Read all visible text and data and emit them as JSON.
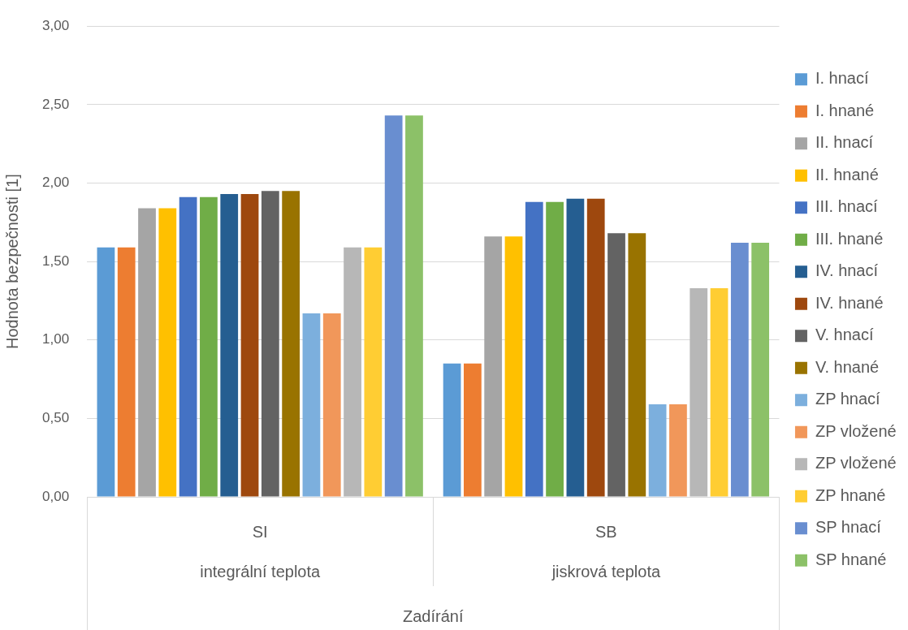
{
  "chart_data": {
    "type": "bar",
    "ylabel": "Hodnota bezpečnosti [1]",
    "xlabel": "Zadírání",
    "categories": [
      "SI",
      "SB"
    ],
    "annotations": [
      "integrální teplota",
      "jiskrová teplota"
    ],
    "ylim": [
      0,
      3
    ],
    "yticks": [
      {
        "value": 0,
        "label": "0,00"
      },
      {
        "value": 0.5,
        "label": "0,50"
      },
      {
        "value": 1,
        "label": "1,00"
      },
      {
        "value": 1.5,
        "label": "1,50"
      },
      {
        "value": 2,
        "label": "2,00"
      },
      {
        "value": 2.5,
        "label": "2,50"
      },
      {
        "value": 3,
        "label": "3,00"
      }
    ],
    "grid": "y",
    "legend": "right",
    "series": [
      {
        "name": "I. hnací",
        "color": "#5b9bd5",
        "values": [
          1.59,
          0.85
        ]
      },
      {
        "name": "I. hnané",
        "color": "#ed7d31",
        "values": [
          1.59,
          0.85
        ]
      },
      {
        "name": "II. hnací",
        "color": "#a5a5a5",
        "values": [
          1.84,
          1.66
        ]
      },
      {
        "name": "II. hnané",
        "color": "#ffc000",
        "values": [
          1.84,
          1.66
        ]
      },
      {
        "name": "III. hnací",
        "color": "#4472c4",
        "values": [
          1.91,
          1.88
        ]
      },
      {
        "name": "III. hnané",
        "color": "#70ad47",
        "values": [
          1.91,
          1.88
        ]
      },
      {
        "name": "IV. hnací",
        "color": "#255e91",
        "values": [
          1.93,
          1.9
        ]
      },
      {
        "name": "IV. hnané",
        "color": "#9e480e",
        "values": [
          1.93,
          1.9
        ]
      },
      {
        "name": "V. hnací",
        "color": "#636363",
        "values": [
          1.95,
          1.68
        ]
      },
      {
        "name": "V. hnané",
        "color": "#997300",
        "values": [
          1.95,
          1.68
        ]
      },
      {
        "name": "ZP hnací",
        "color": "#7cafdd",
        "values": [
          1.17,
          0.59
        ]
      },
      {
        "name": "ZP vložené",
        "color": "#f1975a",
        "values": [
          1.17,
          0.59
        ]
      },
      {
        "name": "ZP vložené",
        "color": "#b7b7b7",
        "values": [
          1.59,
          1.33
        ]
      },
      {
        "name": "ZP hnané",
        "color": "#ffcd33",
        "values": [
          1.59,
          1.33
        ]
      },
      {
        "name": "SP hnací",
        "color": "#698ed0",
        "values": [
          2.43,
          1.62
        ]
      },
      {
        "name": "SP hnané",
        "color": "#8cc168",
        "values": [
          2.43,
          1.62
        ]
      }
    ]
  }
}
